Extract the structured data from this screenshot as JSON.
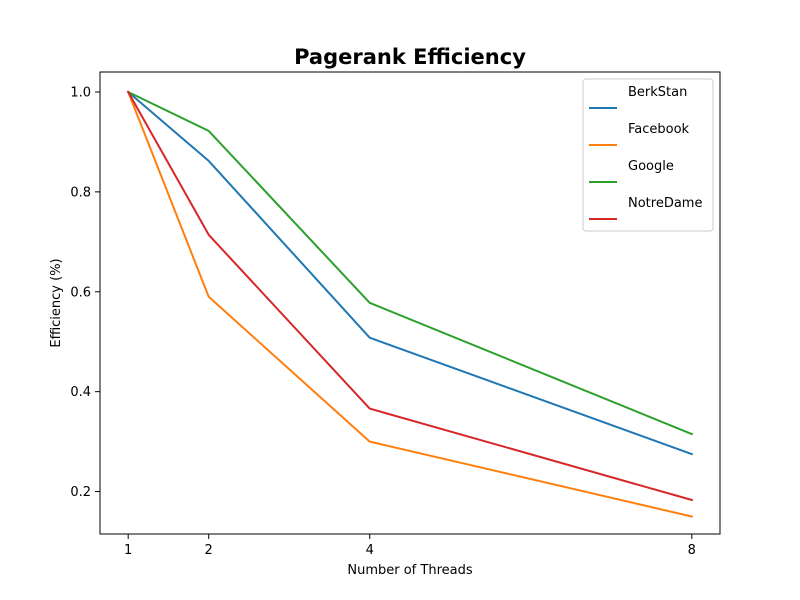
{
  "chart_data": {
    "type": "line",
    "title": "Pagerank Efficiency",
    "xlabel": "Number of Threads",
    "ylabel": "Efficiency (%)",
    "x": [
      1,
      2,
      4,
      8
    ],
    "x_ticks": [
      "1",
      "2",
      "4",
      "8"
    ],
    "y_ticks": [
      "0.2",
      "0.4",
      "0.6",
      "0.8",
      "1.0"
    ],
    "xlim": [
      0.65,
      8.35
    ],
    "ylim": [
      0.115,
      1.04
    ],
    "grid": false,
    "legend_position": "top-right",
    "series": [
      {
        "name": "BerkStan",
        "color": "#1f77b4",
        "values": [
          1.0,
          0.862,
          0.508,
          0.275
        ]
      },
      {
        "name": "Facebook",
        "color": "#ff7f0e",
        "values": [
          1.0,
          0.59,
          0.3,
          0.15
        ]
      },
      {
        "name": "Google",
        "color": "#2ca02c",
        "values": [
          1.0,
          0.922,
          0.578,
          0.315
        ]
      },
      {
        "name": "NotreDame",
        "color": "#d62728",
        "values": [
          1.0,
          0.714,
          0.366,
          0.183
        ]
      }
    ]
  }
}
